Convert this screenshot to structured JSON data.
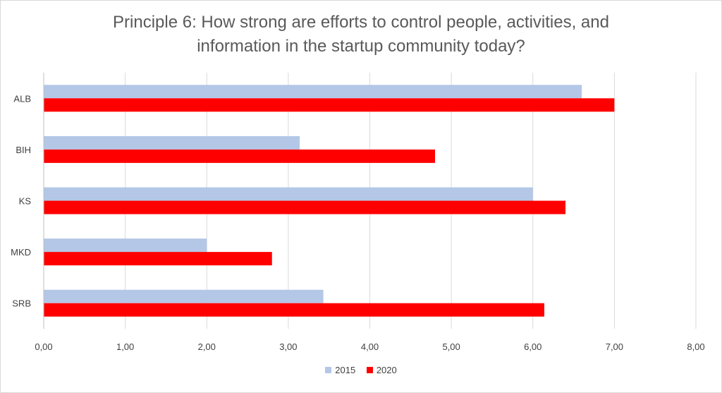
{
  "chart_data": {
    "type": "bar",
    "orientation": "horizontal",
    "title": "Principle 6: How strong are efforts to control people, activities, and information in the startup community today?",
    "title_lines": [
      "Principle 6: How strong are efforts to control people, activities, and",
      "information in the startup community today?"
    ],
    "categories": [
      "ALB",
      "BIH",
      "KS",
      "MKD",
      "SRB"
    ],
    "series": [
      {
        "name": "2015",
        "color": "#b4c7e7",
        "values": [
          6.6,
          3.14,
          6.0,
          2.0,
          3.43
        ]
      },
      {
        "name": "2020",
        "color": "#ff0000",
        "values": [
          7.0,
          4.8,
          6.4,
          2.8,
          6.14
        ]
      }
    ],
    "xlim": [
      0,
      8
    ],
    "x_ticks": [
      "0,00",
      "1,00",
      "2,00",
      "3,00",
      "4,00",
      "5,00",
      "6,00",
      "7,00",
      "8,00"
    ],
    "grid": "vertical",
    "legend_position": "bottom",
    "xlabel": "",
    "ylabel": ""
  }
}
